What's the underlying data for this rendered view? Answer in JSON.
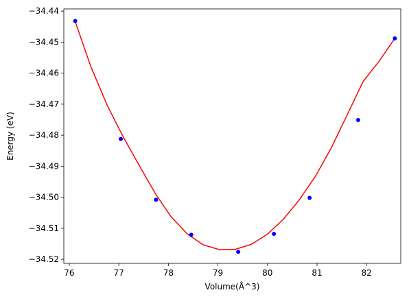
{
  "chart_data": {
    "type": "scatter",
    "title": "",
    "xlabel": "Volume(Å^3)",
    "ylabel": "Energy (eV)",
    "xlim": [
      75.89,
      82.69
    ],
    "ylim": [
      -34.5213,
      -34.4393
    ],
    "xticks": [
      76,
      77,
      78,
      79,
      80,
      81,
      82
    ],
    "xtick_labels": [
      "76",
      "77",
      "78",
      "79",
      "80",
      "81",
      "82"
    ],
    "yticks": [
      -34.52,
      -34.51,
      -34.5,
      -34.49,
      -34.48,
      -34.47,
      -34.46,
      -34.45,
      -34.44
    ],
    "ytick_labels": [
      "−34.52",
      "−34.51",
      "−34.50",
      "−34.49",
      "−34.48",
      "−34.47",
      "−34.46",
      "−34.45",
      "−34.44"
    ],
    "grid": false,
    "series": [
      {
        "kind": "points",
        "color": "#0000ff",
        "x": [
          76.12,
          77.04,
          77.75,
          78.46,
          79.41,
          80.13,
          80.85,
          81.83,
          82.57
        ],
        "y": [
          -34.4432,
          -34.4812,
          -34.5008,
          -34.5121,
          -34.5176,
          -34.5118,
          -34.5002,
          -34.4751,
          -34.4488
        ]
      },
      {
        "kind": "fit",
        "color": "#ff0000",
        "x": [
          76.12,
          76.44,
          76.77,
          77.09,
          77.41,
          77.74,
          78.06,
          78.38,
          78.7,
          79.03,
          79.35,
          79.67,
          80.0,
          80.32,
          80.64,
          80.97,
          81.29,
          81.61,
          81.93,
          82.26,
          82.57
        ],
        "y": [
          -34.4434,
          -34.4581,
          -34.4705,
          -34.4806,
          -34.4897,
          -34.4989,
          -34.5064,
          -34.5118,
          -34.5153,
          -34.5169,
          -34.5168,
          -34.5152,
          -34.5119,
          -34.5071,
          -34.5009,
          -34.4932,
          -34.484,
          -34.4734,
          -34.4627,
          -34.456,
          -34.4488
        ]
      }
    ]
  }
}
